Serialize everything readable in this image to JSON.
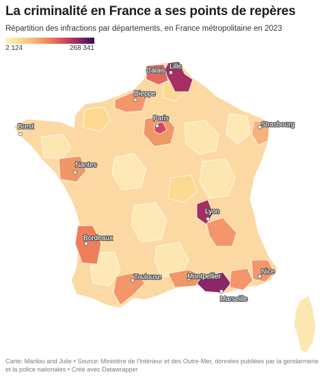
{
  "title": "La criminalité en France a ses points de repères",
  "subtitle": "Répartition des infractions par départements, en France métropolitaine en 2023",
  "legend": {
    "min_label": "2 124",
    "max_label": "268 341",
    "colors": [
      "#fdf3c4",
      "#fbd98f",
      "#f9b16f",
      "#ee7f5a",
      "#d2485e",
      "#8a2768",
      "#3a0b57"
    ]
  },
  "cities": [
    {
      "key": "lille",
      "label": "Lille"
    },
    {
      "key": "calais",
      "label": "Calais"
    },
    {
      "key": "dieppe",
      "label": "Dieppe"
    },
    {
      "key": "paris",
      "label": "Paris"
    },
    {
      "key": "brest",
      "label": "Brest"
    },
    {
      "key": "strasbourg",
      "label": "Strasbourg"
    },
    {
      "key": "nantes",
      "label": "Nantes"
    },
    {
      "key": "lyon",
      "label": "Lyon"
    },
    {
      "key": "bordeaux",
      "label": "Bordeaux"
    },
    {
      "key": "toulouse",
      "label": "Toulouse"
    },
    {
      "key": "montpellier",
      "label": "Montpellier"
    },
    {
      "key": "nice",
      "label": "Nice"
    },
    {
      "key": "marseille",
      "label": "Marseille"
    }
  ],
  "footer": "Carte: Marilou and Julie • Source: Ministère de l'Intérieur et des Outre-Mer, données publiées par la gendarmerie et la police nationales • Créé avec Datawrapper"
}
